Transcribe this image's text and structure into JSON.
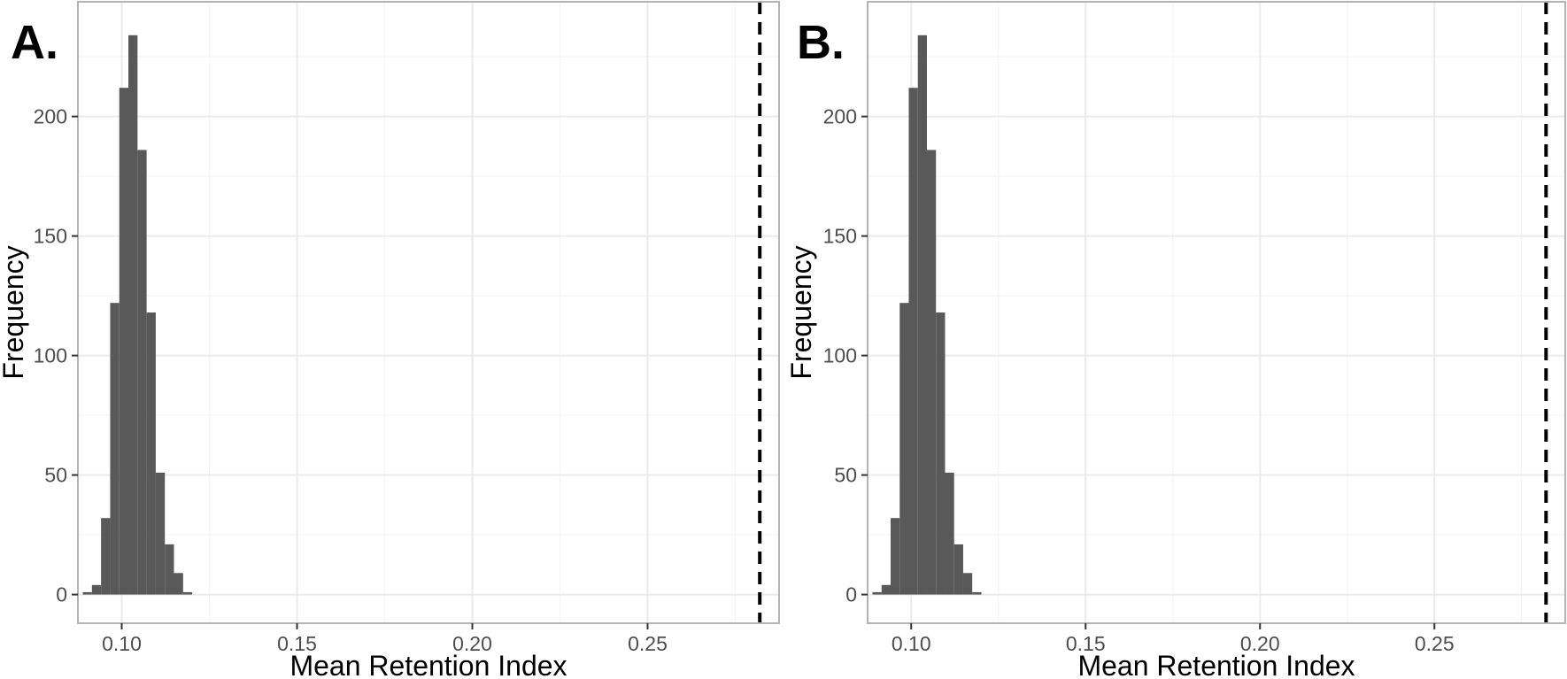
{
  "chart_data": [
    {
      "type": "bar",
      "panel_label": "A.",
      "xlabel": "Mean Retention Index",
      "ylabel": "Frequency",
      "xlim": [
        0.0875,
        0.2875
      ],
      "ylim": [
        -12,
        248
      ],
      "x_ticks": [
        0.1,
        0.15,
        0.2,
        0.25
      ],
      "x_tick_labels": [
        "0.10",
        "0.15",
        "0.20",
        "0.25"
      ],
      "y_ticks": [
        0,
        50,
        100,
        150,
        200
      ],
      "y_tick_labels": [
        "0",
        "50",
        "100",
        "150",
        "200"
      ],
      "grid": true,
      "bin_width": 0.0026,
      "bins": [
        {
          "x": 0.0902,
          "value": 1
        },
        {
          "x": 0.0928,
          "value": 4
        },
        {
          "x": 0.0954,
          "value": 32
        },
        {
          "x": 0.098,
          "value": 122
        },
        {
          "x": 0.1006,
          "value": 212
        },
        {
          "x": 0.1032,
          "value": 234
        },
        {
          "x": 0.1058,
          "value": 186
        },
        {
          "x": 0.1084,
          "value": 118
        },
        {
          "x": 0.111,
          "value": 51
        },
        {
          "x": 0.1136,
          "value": 21
        },
        {
          "x": 0.1162,
          "value": 9
        },
        {
          "x": 0.1188,
          "value": 1
        }
      ],
      "reference_line_x": 0.282
    },
    {
      "type": "bar",
      "panel_label": "B.",
      "xlabel": "Mean Retention Index",
      "ylabel": "Frequency",
      "xlim": [
        0.0875,
        0.2875
      ],
      "ylim": [
        -12,
        248
      ],
      "x_ticks": [
        0.1,
        0.15,
        0.2,
        0.25
      ],
      "x_tick_labels": [
        "0.10",
        "0.15",
        "0.20",
        "0.25"
      ],
      "y_ticks": [
        0,
        50,
        100,
        150,
        200
      ],
      "y_tick_labels": [
        "0",
        "50",
        "100",
        "150",
        "200"
      ],
      "grid": true,
      "bin_width": 0.0026,
      "bins": [
        {
          "x": 0.0902,
          "value": 1
        },
        {
          "x": 0.0928,
          "value": 4
        },
        {
          "x": 0.0954,
          "value": 32
        },
        {
          "x": 0.098,
          "value": 122
        },
        {
          "x": 0.1006,
          "value": 212
        },
        {
          "x": 0.1032,
          "value": 234
        },
        {
          "x": 0.1058,
          "value": 186
        },
        {
          "x": 0.1084,
          "value": 118
        },
        {
          "x": 0.111,
          "value": 51
        },
        {
          "x": 0.1136,
          "value": 21
        },
        {
          "x": 0.1162,
          "value": 9
        },
        {
          "x": 0.1188,
          "value": 1
        }
      ],
      "reference_line_x": 0.282
    }
  ],
  "colors": {
    "bar_fill": "#595959",
    "panel_border": "#b3b3b3",
    "major_grid": "#ebebeb",
    "minor_grid": "#f5f5f5",
    "tick_label": "#4d4d4d",
    "reference_line": "#000000"
  }
}
